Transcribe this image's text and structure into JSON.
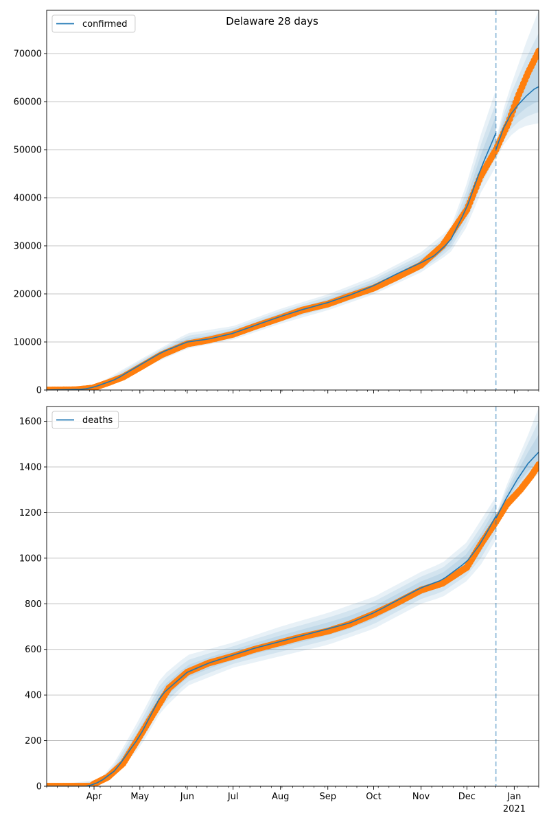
{
  "chart_data": [
    {
      "type": "line",
      "title": "Delaware 28 days",
      "xlabel": "",
      "ylabel": "",
      "x_axis": {
        "type": "date",
        "range": [
          "2020-03-01",
          "2021-01-17"
        ],
        "tick_labels": [
          {
            "date": "2020-04-01",
            "label": ""
          },
          {
            "date": "2020-05-01",
            "label": ""
          },
          {
            "date": "2020-06-01",
            "label": ""
          },
          {
            "date": "2020-07-01",
            "label": ""
          },
          {
            "date": "2020-08-01",
            "label": ""
          },
          {
            "date": "2020-09-01",
            "label": ""
          },
          {
            "date": "2020-10-01",
            "label": ""
          },
          {
            "date": "2020-11-01",
            "label": ""
          },
          {
            "date": "2020-12-01",
            "label": ""
          },
          {
            "date": "2021-01-01",
            "label": ""
          }
        ]
      },
      "ylim": [
        0,
        79000
      ],
      "y_ticks": [
        0,
        10000,
        20000,
        30000,
        40000,
        50000,
        60000,
        70000
      ],
      "grid": "horizontal",
      "legend": {
        "position": "top-left",
        "entries": [
          "confirmed"
        ]
      },
      "forecast_start": "2020-12-20",
      "colors": {
        "model": "#1f77b4",
        "observed": "#ff7f0e",
        "band": "#1f77b4",
        "forecast_line": "#1f77b4"
      },
      "series": [
        {
          "name": "confirmed",
          "kind": "model",
          "points": [
            [
              "2020-03-01",
              0
            ],
            [
              "2020-03-25",
              150
            ],
            [
              "2020-04-01",
              600
            ],
            [
              "2020-04-15",
              2200
            ],
            [
              "2020-05-01",
              5200
            ],
            [
              "2020-05-15",
              7800
            ],
            [
              "2020-06-01",
              10000
            ],
            [
              "2020-06-15",
              10600
            ],
            [
              "2020-07-01",
              11800
            ],
            [
              "2020-07-15",
              13400
            ],
            [
              "2020-08-01",
              15300
            ],
            [
              "2020-08-15",
              16700
            ],
            [
              "2020-09-01",
              18200
            ],
            [
              "2020-09-15",
              19700
            ],
            [
              "2020-10-01",
              21700
            ],
            [
              "2020-10-15",
              24000
            ],
            [
              "2020-11-01",
              26500
            ],
            [
              "2020-11-10",
              28000
            ],
            [
              "2020-11-20",
              31000
            ],
            [
              "2020-12-01",
              38000
            ],
            [
              "2020-12-10",
              46000
            ],
            [
              "2020-12-20",
              53500
            ]
          ],
          "band": {
            "lower": [
              [
                "2020-03-01",
                0
              ],
              [
                "2020-04-01",
                400
              ],
              [
                "2020-05-01",
                4300
              ],
              [
                "2020-06-01",
                8600
              ],
              [
                "2020-07-01",
                10500
              ],
              [
                "2020-08-01",
                13800
              ],
              [
                "2020-09-01",
                16600
              ],
              [
                "2020-10-01",
                19900
              ],
              [
                "2020-11-01",
                24500
              ],
              [
                "2020-11-20",
                28500
              ],
              [
                "2020-12-01",
                34000
              ],
              [
                "2020-12-10",
                41000
              ],
              [
                "2020-12-20",
                46500
              ]
            ],
            "upper": [
              [
                "2020-03-01",
                0
              ],
              [
                "2020-04-01",
                800
              ],
              [
                "2020-05-01",
                6300
              ],
              [
                "2020-06-01",
                11800
              ],
              [
                "2020-07-01",
                13300
              ],
              [
                "2020-08-01",
                16900
              ],
              [
                "2020-09-01",
                19900
              ],
              [
                "2020-10-01",
                23600
              ],
              [
                "2020-11-01",
                28700
              ],
              [
                "2020-11-20",
                33500
              ],
              [
                "2020-12-01",
                43000
              ],
              [
                "2020-12-10",
                53000
              ],
              [
                "2020-12-20",
                62500
              ]
            ]
          }
        },
        {
          "name": "confirmed",
          "kind": "forecast",
          "points": [
            [
              "2020-12-20",
              50000
            ],
            [
              "2020-12-25",
              54500
            ],
            [
              "2020-12-30",
              57500
            ],
            [
              "2021-01-04",
              59500
            ],
            [
              "2021-01-09",
              61200
            ],
            [
              "2021-01-14",
              62600
            ],
            [
              "2021-01-17",
              63100
            ]
          ],
          "band": {
            "lower": [
              [
                "2020-12-20",
                48000
              ],
              [
                "2020-12-25",
                51000
              ],
              [
                "2020-12-30",
                53000
              ],
              [
                "2021-01-04",
                54300
              ],
              [
                "2021-01-09",
                55000
              ],
              [
                "2021-01-17",
                55500
              ]
            ],
            "upper": [
              [
                "2020-12-20",
                52000
              ],
              [
                "2020-12-25",
                58500
              ],
              [
                "2020-12-30",
                63500
              ],
              [
                "2021-01-04",
                68000
              ],
              [
                "2021-01-09",
                72500
              ],
              [
                "2021-01-17",
                79000
              ]
            ]
          }
        },
        {
          "name": "",
          "kind": "observed",
          "points": [
            [
              "2020-03-01",
              0
            ],
            [
              "2020-03-20",
              50
            ],
            [
              "2020-03-31",
              400
            ],
            [
              "2020-04-10",
              1500
            ],
            [
              "2020-04-20",
              2700
            ],
            [
              "2020-05-01",
              4700
            ],
            [
              "2020-05-15",
              7300
            ],
            [
              "2020-06-01",
              9600
            ],
            [
              "2020-06-15",
              10400
            ],
            [
              "2020-07-01",
              11600
            ],
            [
              "2020-07-15",
              13200
            ],
            [
              "2020-08-01",
              15000
            ],
            [
              "2020-08-15",
              16600
            ],
            [
              "2020-09-01",
              17900
            ],
            [
              "2020-09-15",
              19500
            ],
            [
              "2020-10-01",
              21200
            ],
            [
              "2020-10-15",
              23300
            ],
            [
              "2020-11-01",
              26000
            ],
            [
              "2020-11-15",
              30000
            ],
            [
              "2020-12-01",
              37500
            ],
            [
              "2020-12-10",
              44500
            ],
            [
              "2020-12-20",
              50000
            ],
            [
              "2020-12-28",
              55500
            ],
            [
              "2021-01-04",
              61500
            ],
            [
              "2021-01-10",
              66000
            ],
            [
              "2021-01-17",
              70500
            ]
          ]
        }
      ]
    },
    {
      "type": "line",
      "title": "",
      "xlabel": "",
      "ylabel": "",
      "x_axis": {
        "type": "date",
        "range": [
          "2020-03-01",
          "2021-01-17"
        ],
        "tick_labels": [
          {
            "date": "2020-04-01",
            "label": "Apr"
          },
          {
            "date": "2020-05-01",
            "label": "May"
          },
          {
            "date": "2020-06-01",
            "label": "Jun"
          },
          {
            "date": "2020-07-01",
            "label": "Jul"
          },
          {
            "date": "2020-08-01",
            "label": "Aug"
          },
          {
            "date": "2020-09-01",
            "label": "Sep"
          },
          {
            "date": "2020-10-01",
            "label": "Oct"
          },
          {
            "date": "2020-11-01",
            "label": "Nov"
          },
          {
            "date": "2020-12-01",
            "label": "Dec"
          },
          {
            "date": "2021-01-01",
            "label": "Jan",
            "sublabel": "2021"
          }
        ]
      },
      "ylim": [
        0,
        1665
      ],
      "y_ticks": [
        0,
        200,
        400,
        600,
        800,
        1000,
        1200,
        1400,
        1600
      ],
      "grid": "horizontal",
      "legend": {
        "position": "top-left",
        "entries": [
          "deaths"
        ]
      },
      "forecast_start": "2020-12-20",
      "colors": {
        "model": "#1f77b4",
        "observed": "#ff7f0e",
        "band": "#1f77b4",
        "forecast_line": "#1f77b4"
      },
      "series": [
        {
          "name": "deaths",
          "kind": "model",
          "points": [
            [
              "2020-03-01",
              0
            ],
            [
              "2020-03-28",
              0
            ],
            [
              "2020-04-05",
              20
            ],
            [
              "2020-04-15",
              70
            ],
            [
              "2020-05-01",
              220
            ],
            [
              "2020-05-15",
              400
            ],
            [
              "2020-06-01",
              500
            ],
            [
              "2020-06-15",
              540
            ],
            [
              "2020-07-01",
              575
            ],
            [
              "2020-07-15",
              605
            ],
            [
              "2020-08-01",
              635
            ],
            [
              "2020-08-15",
              660
            ],
            [
              "2020-09-01",
              690
            ],
            [
              "2020-09-15",
              715
            ],
            [
              "2020-10-01",
              760
            ],
            [
              "2020-10-15",
              810
            ],
            [
              "2020-11-01",
              870
            ],
            [
              "2020-11-15",
              905
            ],
            [
              "2020-12-01",
              985
            ],
            [
              "2020-12-10",
              1065
            ],
            [
              "2020-12-20",
              1185
            ]
          ],
          "band": {
            "lower": [
              [
                "2020-03-01",
                0
              ],
              [
                "2020-04-05",
                10
              ],
              [
                "2020-04-15",
                50
              ],
              [
                "2020-05-01",
                170
              ],
              [
                "2020-05-15",
                330
              ],
              [
                "2020-06-01",
                440
              ],
              [
                "2020-07-01",
                520
              ],
              [
                "2020-08-01",
                570
              ],
              [
                "2020-09-01",
                620
              ],
              [
                "2020-10-01",
                690
              ],
              [
                "2020-11-01",
                800
              ],
              [
                "2020-11-15",
                830
              ],
              [
                "2020-12-01",
                900
              ],
              [
                "2020-12-10",
                970
              ],
              [
                "2020-12-20",
                1080
              ]
            ],
            "upper": [
              [
                "2020-03-01",
                0
              ],
              [
                "2020-04-05",
                30
              ],
              [
                "2020-04-15",
                110
              ],
              [
                "2020-05-01",
                300
              ],
              [
                "2020-05-15",
                480
              ],
              [
                "2020-06-01",
                575
              ],
              [
                "2020-07-01",
                630
              ],
              [
                "2020-08-01",
                700
              ],
              [
                "2020-09-01",
                760
              ],
              [
                "2020-10-01",
                830
              ],
              [
                "2020-11-01",
                940
              ],
              [
                "2020-11-15",
                980
              ],
              [
                "2020-12-01",
                1070
              ],
              [
                "2020-12-10",
                1165
              ],
              [
                "2020-12-20",
                1270
              ]
            ]
          }
        },
        {
          "name": "deaths",
          "kind": "forecast",
          "points": [
            [
              "2020-12-20",
              1175
            ],
            [
              "2020-12-27",
              1265
            ],
            [
              "2021-01-03",
              1345
            ],
            [
              "2021-01-10",
              1415
            ],
            [
              "2021-01-17",
              1465
            ]
          ],
          "band": {
            "lower": [
              [
                "2020-12-20",
                1165
              ],
              [
                "2020-12-27",
                1230
              ],
              [
                "2021-01-03",
                1285
              ],
              [
                "2021-01-10",
                1330
              ],
              [
                "2021-01-17",
                1370
              ]
            ],
            "upper": [
              [
                "2020-12-20",
                1190
              ],
              [
                "2020-12-27",
                1320
              ],
              [
                "2021-01-03",
                1430
              ],
              [
                "2021-01-10",
                1540
              ],
              [
                "2021-01-17",
                1660
              ]
            ]
          }
        },
        {
          "name": "",
          "kind": "observed",
          "points": [
            [
              "2020-03-01",
              0
            ],
            [
              "2020-03-30",
              0
            ],
            [
              "2020-04-01",
              10
            ],
            [
              "2020-04-10",
              40
            ],
            [
              "2020-04-20",
              100
            ],
            [
              "2020-05-01",
              220
            ],
            [
              "2020-05-10",
              320
            ],
            [
              "2020-05-20",
              430
            ],
            [
              "2020-06-01",
              500
            ],
            [
              "2020-06-15",
              540
            ],
            [
              "2020-07-01",
              570
            ],
            [
              "2020-07-15",
              600
            ],
            [
              "2020-08-01",
              630
            ],
            [
              "2020-08-15",
              655
            ],
            [
              "2020-09-01",
              680
            ],
            [
              "2020-09-15",
              710
            ],
            [
              "2020-10-01",
              755
            ],
            [
              "2020-10-15",
              800
            ],
            [
              "2020-11-01",
              860
            ],
            [
              "2020-11-15",
              890
            ],
            [
              "2020-12-01",
              960
            ],
            [
              "2020-12-10",
              1060
            ],
            [
              "2020-12-20",
              1160
            ],
            [
              "2020-12-27",
              1235
            ],
            [
              "2021-01-05",
              1300
            ],
            [
              "2021-01-12",
              1360
            ],
            [
              "2021-01-17",
              1410
            ]
          ]
        }
      ]
    }
  ]
}
